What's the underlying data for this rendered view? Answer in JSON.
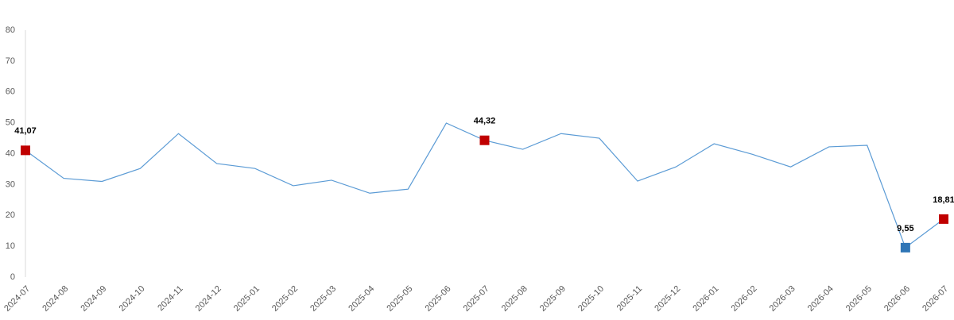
{
  "chart_data": {
    "type": "line",
    "x": [
      "2024-07",
      "2024-08",
      "2024-09",
      "2024-10",
      "2024-11",
      "2024-12",
      "2025-01",
      "2025-02",
      "2025-03",
      "2025-04",
      "2025-05",
      "2025-06",
      "2025-07",
      "2025-08",
      "2025-09",
      "2025-10",
      "2025-11",
      "2025-12",
      "2026-01",
      "2026-02",
      "2026-03",
      "2026-04",
      "2026-05",
      "2026-06",
      "2026-07"
    ],
    "values": [
      41.07,
      32,
      31,
      35.2,
      46.5,
      36.8,
      35.2,
      29.6,
      31.4,
      27.2,
      28.5,
      49.9,
      44.32,
      41.4,
      46.5,
      45,
      31.1,
      35.7,
      43.2,
      39.8,
      35.7,
      42.2,
      42.7,
      9.55,
      18.81
    ],
    "value_labels": [
      "41,07",
      null,
      null,
      null,
      null,
      null,
      null,
      null,
      null,
      null,
      null,
      null,
      "44,32",
      null,
      null,
      null,
      null,
      null,
      null,
      null,
      null,
      null,
      null,
      "9,55",
      "18,81"
    ],
    "point_colors": [
      "#c00000",
      null,
      null,
      null,
      null,
      null,
      null,
      null,
      null,
      null,
      null,
      null,
      "#c00000",
      null,
      null,
      null,
      null,
      null,
      null,
      null,
      null,
      null,
      null,
      "#2e75b6",
      "#c00000"
    ],
    "color": "#5b9bd5",
    "ylim": [
      0,
      80
    ],
    "yticks": [
      0,
      10,
      20,
      30,
      40,
      50,
      60,
      70,
      80
    ],
    "grid": false
  }
}
